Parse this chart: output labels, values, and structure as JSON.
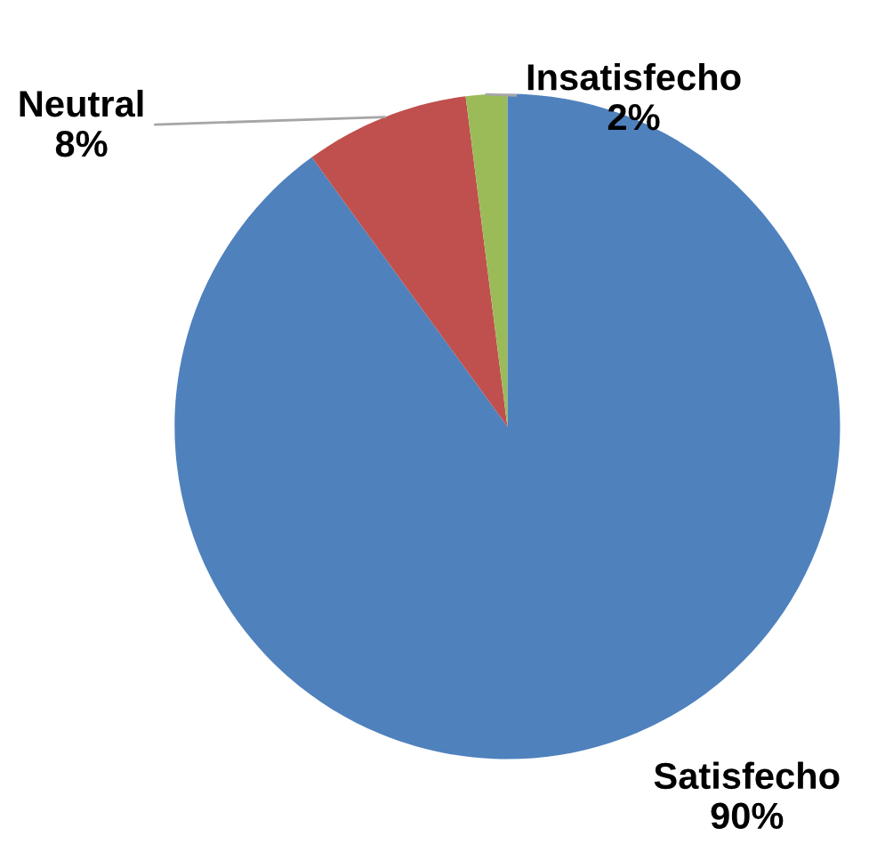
{
  "chart_data": {
    "type": "pie",
    "categories": [
      "Satisfecho",
      "Neutral",
      "Insatisfecho"
    ],
    "values": [
      90,
      8,
      2
    ],
    "value_labels": [
      "90%",
      "8%",
      "2%"
    ],
    "colors": [
      "#4f81bd",
      "#c0504d",
      "#9bbb59"
    ],
    "legend": false
  }
}
